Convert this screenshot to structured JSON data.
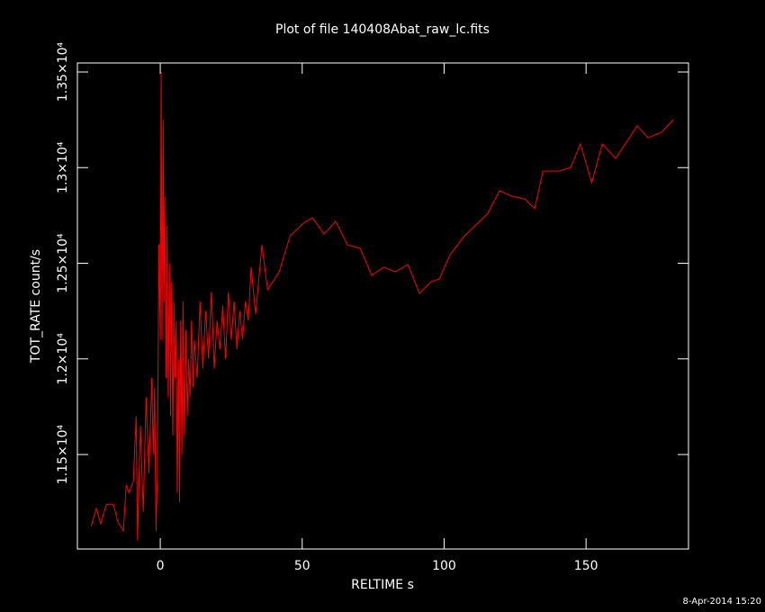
{
  "chart_data": {
    "type": "line",
    "title": "Plot of file 140408Abat_raw_lc.fits",
    "x_label": "RELTIME  s",
    "y_label": "TOT_RATE  count/s",
    "timestamp": "8-Apr-2014 15:20",
    "xlim": [
      -29.2,
      186.1
    ],
    "xticks": [
      0,
      50,
      100,
      150
    ],
    "ylim": [
      11006,
      13547
    ],
    "yticks": [
      {
        "value": 11500,
        "label": "1.15×10⁴"
      },
      {
        "value": 12000,
        "label": "1.2×10⁴"
      },
      {
        "value": 12500,
        "label": "1.25×10⁴"
      },
      {
        "value": 13000,
        "label": "1.3×10⁴"
      },
      {
        "value": 13500,
        "label": "1.35×10⁴"
      }
    ],
    "x": [
      -24.4,
      -22.5,
      -21,
      -19,
      -16.5,
      -15,
      -13,
      -12,
      -11,
      -9.5,
      -8.5,
      -8,
      -7,
      -6,
      -5,
      -4,
      -3,
      -2.5,
      -2,
      -1.5,
      -1,
      -0.5,
      0,
      0.3,
      0.6,
      1,
      1.3,
      1.6,
      2,
      2.4,
      2.8,
      3.2,
      3.6,
      4,
      4.4,
      4.8,
      5.2,
      5.6,
      6,
      6.4,
      6.8,
      7.2,
      7.6,
      8,
      8.5,
      9,
      9.5,
      10,
      10.5,
      11,
      11.5,
      12,
      13,
      14,
      15,
      16,
      17,
      18,
      19,
      20,
      21,
      22,
      23,
      24,
      25,
      26,
      27,
      28,
      29,
      30,
      31,
      32,
      33.6,
      35.8,
      37.8,
      41.9,
      45.7,
      50.4,
      53.6,
      57.7,
      61.8,
      65.9,
      70.4,
      74.5,
      78.6,
      82.8,
      87.2,
      91.3,
      95.4,
      98.3,
      102.1,
      107.2,
      115.4,
      119.5,
      123.7,
      128.4,
      131.9,
      134.8,
      140.5,
      144.6,
      148,
      152,
      155.7,
      160.4,
      168,
      171.8,
      176.6,
      180.7
    ],
    "series": [
      {
        "color": "#ff0000",
        "values": [
          11124,
          11218,
          11138,
          11240,
          11240,
          11150,
          11100,
          11340,
          11300,
          11360,
          11700,
          11050,
          11650,
          11200,
          11800,
          11400,
          11900,
          11500,
          11850,
          11100,
          11400,
          12600,
          12100,
          13500,
          12100,
          13250,
          12300,
          12850,
          11900,
          12700,
          11800,
          12500,
          11700,
          12400,
          11600,
          12300,
          11900,
          12200,
          11300,
          12000,
          11250,
          12200,
          11500,
          12300,
          11600,
          12150,
          11700,
          12000,
          11800,
          12200,
          11850,
          12100,
          11900,
          12300,
          11950,
          12250,
          12000,
          12350,
          11950,
          12200,
          12050,
          12280,
          12000,
          12350,
          12100,
          12300,
          12050,
          12250,
          12100,
          12300,
          12200,
          12480,
          12234,
          12596,
          12361,
          12455,
          12643,
          12709,
          12738,
          12653,
          12719,
          12596,
          12578,
          12436,
          12479,
          12455,
          12493,
          12342,
          12404,
          12418,
          12545,
          12643,
          12761,
          12879,
          12851,
          12836,
          12785,
          12982,
          12982,
          13001,
          13124,
          12921,
          13124,
          13048,
          13218,
          13156,
          13185,
          13251
        ]
      }
    ]
  }
}
